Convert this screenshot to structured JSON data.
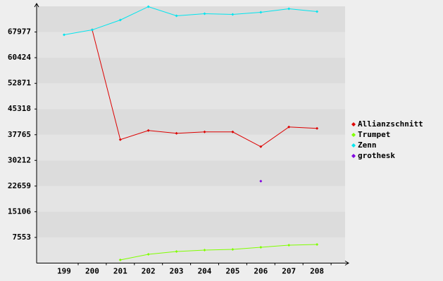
{
  "chart_data": {
    "type": "line",
    "categories": [
      "199",
      "200",
      "201",
      "202",
      "203",
      "204",
      "205",
      "206",
      "207",
      "208"
    ],
    "series": [
      {
        "name": "Allianzschnitt",
        "color": "#dd0000",
        "values": [
          null,
          68600,
          36320,
          39010,
          38180,
          38590,
          38590,
          34250,
          40040,
          39630
        ]
      },
      {
        "name": "Trumpet",
        "color": "#80ff00",
        "values": [
          null,
          null,
          930,
          2590,
          3410,
          3830,
          4040,
          4660,
          5280,
          5480
        ]
      },
      {
        "name": "Zenn",
        "color": "#00e5ee",
        "values": [
          67150,
          68600,
          71500,
          75430,
          72740,
          73360,
          73150,
          73770,
          74800,
          73980
        ]
      },
      {
        "name": "grothesk",
        "color": "#8000e0",
        "values": [
          null,
          null,
          null,
          null,
          null,
          null,
          null,
          24110,
          null,
          null
        ]
      }
    ],
    "ylim": [
      0,
      75530
    ],
    "yticks": [
      7553,
      15106,
      22659,
      30212,
      37765,
      45318,
      52871,
      60424,
      67977
    ],
    "grid": true,
    "legend": "right"
  }
}
